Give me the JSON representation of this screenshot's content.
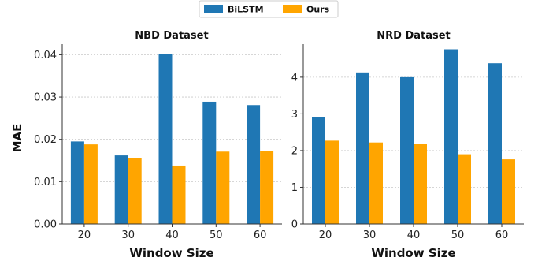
{
  "legend": {
    "placement": "top-center",
    "entries": [
      {
        "name": "BiLSTM",
        "color": "#1f77b4"
      },
      {
        "name": "Ours",
        "color": "#ffa500"
      }
    ]
  },
  "chart_data": [
    {
      "type": "bar",
      "title": "NBD Dataset",
      "xlabel": "Window Size",
      "ylabel": "MAE",
      "categories": [
        "20",
        "30",
        "40",
        "50",
        "60"
      ],
      "ylim": [
        0,
        0.0425
      ],
      "yticks": [
        0.0,
        0.01,
        0.02,
        0.03,
        0.04
      ],
      "ytick_labels": [
        "0.00",
        "0.01",
        "0.02",
        "0.03",
        "0.04"
      ],
      "grid": "y-dotted",
      "series": [
        {
          "name": "BiLSTM",
          "color": "#1f77b4",
          "values": [
            0.0195,
            0.0162,
            0.0401,
            0.0289,
            0.0281
          ]
        },
        {
          "name": "Ours",
          "color": "#ffa500",
          "values": [
            0.0188,
            0.0156,
            0.0138,
            0.0171,
            0.0173
          ]
        }
      ]
    },
    {
      "type": "bar",
      "title": "NRD Dataset",
      "xlabel": "Window Size",
      "ylabel": "",
      "categories": [
        "20",
        "30",
        "40",
        "50",
        "60"
      ],
      "ylim": [
        0,
        4.9
      ],
      "yticks": [
        0,
        1,
        2,
        3,
        4
      ],
      "ytick_labels": [
        "0",
        "1",
        "2",
        "3",
        "4"
      ],
      "grid": "y-dotted",
      "series": [
        {
          "name": "BiLSTM",
          "color": "#1f77b4",
          "values": [
            2.92,
            4.13,
            4.0,
            4.76,
            4.38
          ]
        },
        {
          "name": "Ours",
          "color": "#ffa500",
          "values": [
            2.27,
            2.22,
            2.18,
            1.9,
            1.76
          ]
        }
      ]
    }
  ]
}
